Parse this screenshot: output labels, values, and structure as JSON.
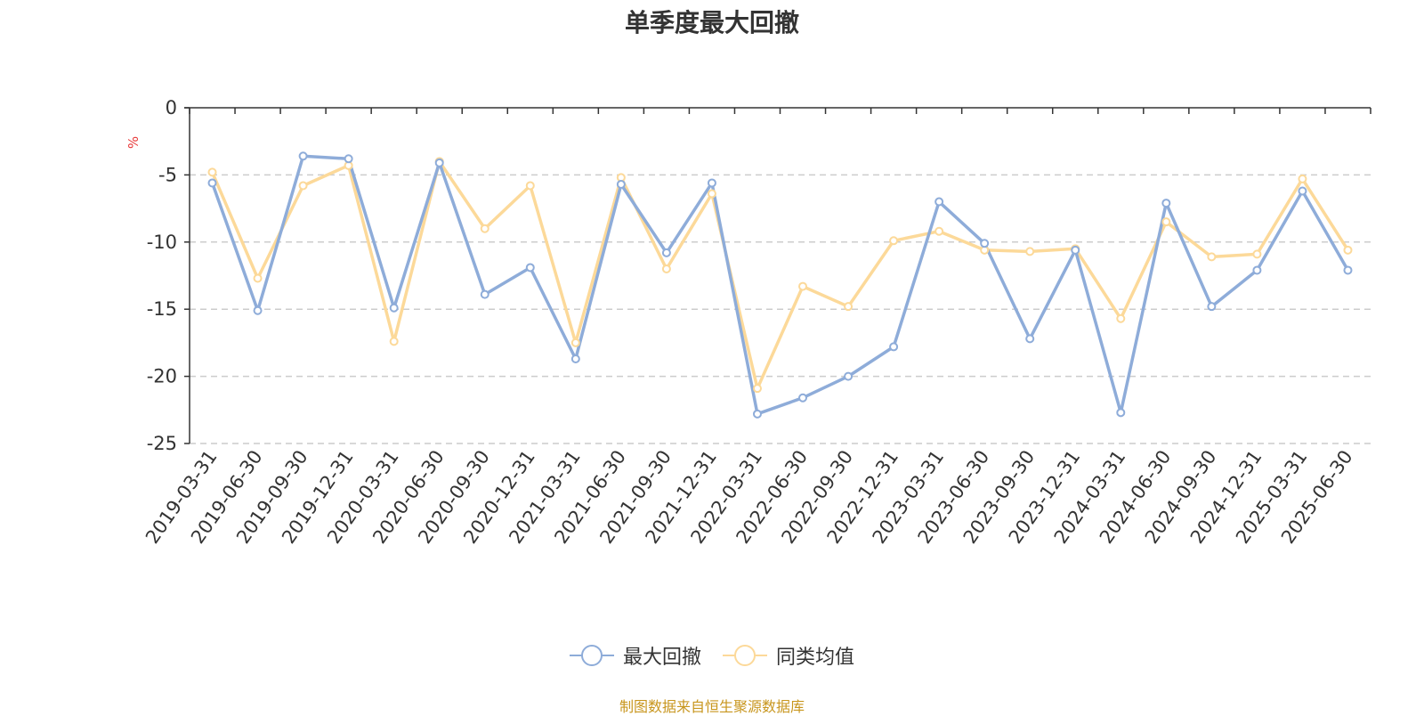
{
  "chart_data": {
    "type": "line",
    "title": "单季度最大回撤",
    "y_unit": "%",
    "ylim": [
      -25,
      0
    ],
    "yticks": [
      0,
      -5,
      -10,
      -15,
      -20,
      -25
    ],
    "grid": "horizontal-dashed",
    "legend_position": "bottom-center",
    "categories": [
      "2019-03-31",
      "2019-06-30",
      "2019-09-30",
      "2019-12-31",
      "2020-03-31",
      "2020-06-30",
      "2020-09-30",
      "2020-12-31",
      "2021-03-31",
      "2021-06-30",
      "2021-09-30",
      "2021-12-31",
      "2022-03-31",
      "2022-06-30",
      "2022-09-30",
      "2022-12-31",
      "2023-03-31",
      "2023-06-30",
      "2023-09-30",
      "2023-12-31",
      "2024-03-31",
      "2024-06-30",
      "2024-09-30",
      "2024-12-31",
      "2025-03-31",
      "2025-06-30"
    ],
    "series": [
      {
        "name": "最大回撤",
        "color": "#8eacd9",
        "values": [
          -5.6,
          -15.1,
          -3.6,
          -3.8,
          -14.9,
          -4.1,
          -13.9,
          -11.9,
          -18.7,
          -5.7,
          -10.8,
          -5.6,
          -22.8,
          -21.6,
          -20.0,
          -17.8,
          -7.0,
          -10.1,
          -17.2,
          -10.6,
          -22.7,
          -7.1,
          -14.8,
          -12.1,
          -6.2,
          -12.1
        ]
      },
      {
        "name": "同类均值",
        "color": "#fcd999",
        "values": [
          -4.8,
          -12.7,
          -5.8,
          -4.3,
          -17.4,
          -4.0,
          -9.0,
          -5.8,
          -17.5,
          -5.2,
          -12.0,
          -6.4,
          -20.9,
          -13.3,
          -14.8,
          -9.9,
          -9.2,
          -10.6,
          -10.7,
          -10.5,
          -15.7,
          -8.5,
          -11.1,
          -10.9,
          -5.3,
          -10.6
        ]
      }
    ]
  },
  "source_note": "制图数据来自恒生聚源数据库"
}
